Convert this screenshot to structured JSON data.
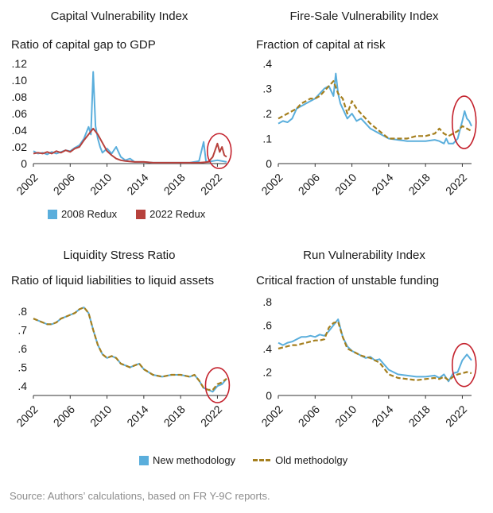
{
  "source": "Source: Authors’ calculations, based on FR Y-9C reports.",
  "colors": {
    "blue": "#5aaedc",
    "red": "#b7413c",
    "gold": "#a57f1e",
    "circle": "#c4222d"
  },
  "legend_top": {
    "a": "2008 Redux",
    "b": "2022 Redux"
  },
  "legend_bottom": {
    "a": "New methodology",
    "b": "Old methodolgy"
  },
  "chart_data": [
    {
      "type": "line",
      "title": "Capital Vulnerability Index",
      "ylabel": "Ratio of capital gap to GDP",
      "xlim": [
        2002,
        2023
      ],
      "ylim": [
        0,
        0.12
      ],
      "yticks": [
        0,
        0.02,
        0.04,
        0.06,
        0.08,
        0.1,
        0.12
      ],
      "yticklabels": [
        "0",
        ".02",
        ".04",
        ".06",
        ".08",
        ".10",
        ".12"
      ],
      "xticks": [
        2002,
        2006,
        2010,
        2014,
        2018,
        2022
      ],
      "xticklabels": [
        "2002",
        "2006",
        "2010",
        "2014",
        "2018",
        "2022"
      ],
      "series": [
        {
          "name": "2008 Redux",
          "color": "#5aaedc",
          "style": "solid",
          "x": [
            2002,
            2002.5,
            2003,
            2003.5,
            2004,
            2004.5,
            2005,
            2005.5,
            2006,
            2006.5,
            2007,
            2007.5,
            2008,
            2008.25,
            2008.5,
            2008.75,
            2009,
            2009.25,
            2009.5,
            2010,
            2010.5,
            2011,
            2011.5,
            2012,
            2012.5,
            2013,
            2014,
            2015,
            2016,
            2017,
            2018,
            2019,
            2020,
            2020.5,
            2020.75,
            2021,
            2021.5,
            2022,
            2022.5,
            2023
          ],
          "y": [
            0.015,
            0.012,
            0.013,
            0.011,
            0.014,
            0.012,
            0.014,
            0.016,
            0.015,
            0.019,
            0.022,
            0.03,
            0.044,
            0.035,
            0.11,
            0.045,
            0.03,
            0.02,
            0.013,
            0.018,
            0.012,
            0.02,
            0.008,
            0.004,
            0.006,
            0.002,
            0.002,
            0.001,
            0.001,
            0.001,
            0.001,
            0.001,
            0.003,
            0.026,
            0.003,
            0.002,
            0.003,
            0.004,
            0.003,
            0.002
          ]
        },
        {
          "name": "2022 Redux",
          "color": "#b7413c",
          "style": "solid",
          "x": [
            2002,
            2002.5,
            2003,
            2003.5,
            2004,
            2004.5,
            2005,
            2005.5,
            2006,
            2006.5,
            2007,
            2007.5,
            2008,
            2008.5,
            2009,
            2009.5,
            2010,
            2010.5,
            2011,
            2011.5,
            2012,
            2013,
            2014,
            2015,
            2016,
            2017,
            2018,
            2019,
            2020,
            2021,
            2021.5,
            2022,
            2022.25,
            2022.5,
            2022.75,
            2023
          ],
          "y": [
            0.012,
            0.013,
            0.012,
            0.014,
            0.012,
            0.015,
            0.013,
            0.016,
            0.014,
            0.018,
            0.02,
            0.028,
            0.035,
            0.042,
            0.035,
            0.025,
            0.015,
            0.01,
            0.006,
            0.004,
            0.003,
            0.002,
            0.002,
            0.001,
            0.001,
            0.001,
            0.001,
            0.001,
            0.001,
            0.002,
            0.008,
            0.024,
            0.014,
            0.02,
            0.01,
            0.008
          ]
        }
      ]
    },
    {
      "type": "line",
      "title": "Fire-Sale Vulnerability Index",
      "ylabel": "Fraction of capital at risk",
      "xlim": [
        2002,
        2023
      ],
      "ylim": [
        0,
        0.4
      ],
      "yticks": [
        0,
        0.1,
        0.2,
        0.3,
        0.4
      ],
      "yticklabels": [
        "0",
        ".1",
        ".2",
        ".3",
        ".4"
      ],
      "xticks": [
        2002,
        2006,
        2010,
        2014,
        2018,
        2022
      ],
      "xticklabels": [
        "2002",
        "2006",
        "2010",
        "2014",
        "2018",
        "2022"
      ],
      "series": [
        {
          "name": "New methodology",
          "color": "#5aaedc",
          "style": "solid",
          "x": [
            2002,
            2002.5,
            2003,
            2003.5,
            2004,
            2004.5,
            2005,
            2005.5,
            2006,
            2006.5,
            2007,
            2007.5,
            2008,
            2008.25,
            2008.5,
            2008.75,
            2009,
            2009.5,
            2010,
            2010.5,
            2011,
            2011.5,
            2012,
            2013,
            2014,
            2015,
            2016,
            2017,
            2018,
            2019,
            2019.5,
            2020,
            2020.25,
            2020.5,
            2021,
            2021.5,
            2022,
            2022.25,
            2022.5,
            2022.75,
            2023
          ],
          "y": [
            0.16,
            0.17,
            0.165,
            0.18,
            0.22,
            0.23,
            0.24,
            0.25,
            0.26,
            0.28,
            0.3,
            0.31,
            0.27,
            0.36,
            0.28,
            0.24,
            0.22,
            0.18,
            0.2,
            0.17,
            0.18,
            0.16,
            0.14,
            0.12,
            0.1,
            0.095,
            0.09,
            0.09,
            0.09,
            0.095,
            0.09,
            0.08,
            0.1,
            0.08,
            0.08,
            0.1,
            0.17,
            0.21,
            0.18,
            0.17,
            0.15
          ]
        },
        {
          "name": "Old methodolgy",
          "color": "#a57f1e",
          "style": "dashed",
          "x": [
            2002,
            2002.5,
            2003,
            2003.5,
            2004,
            2004.5,
            2005,
            2005.5,
            2006,
            2006.5,
            2007,
            2007.5,
            2008,
            2008.5,
            2009,
            2009.5,
            2010,
            2010.5,
            2011,
            2011.5,
            2012,
            2013,
            2014,
            2015,
            2016,
            2017,
            2018,
            2019,
            2019.5,
            2020,
            2020.5,
            2021,
            2021.5,
            2022,
            2022.5,
            2023
          ],
          "y": [
            0.18,
            0.19,
            0.2,
            0.21,
            0.22,
            0.24,
            0.25,
            0.26,
            0.26,
            0.27,
            0.29,
            0.31,
            0.33,
            0.28,
            0.26,
            0.2,
            0.25,
            0.22,
            0.2,
            0.18,
            0.16,
            0.13,
            0.1,
            0.1,
            0.1,
            0.11,
            0.11,
            0.12,
            0.14,
            0.12,
            0.11,
            0.12,
            0.13,
            0.15,
            0.14,
            0.13
          ]
        }
      ]
    },
    {
      "type": "line",
      "title": "Liquidity Stress Ratio",
      "ylabel": "Ratio of liquid liabilities to liquid assets",
      "xlim": [
        2002,
        2023
      ],
      "ylim": [
        0.35,
        0.85
      ],
      "yticks": [
        0.4,
        0.5,
        0.6,
        0.7,
        0.8
      ],
      "yticklabels": [
        ".4",
        ".5",
        ".6",
        ".7",
        ".8"
      ],
      "xticks": [
        2002,
        2006,
        2010,
        2014,
        2018,
        2022
      ],
      "xticklabels": [
        "2002",
        "2006",
        "2010",
        "2014",
        "2018",
        "2022"
      ],
      "series": [
        {
          "name": "New methodology",
          "color": "#5aaedc",
          "style": "solid",
          "x": [
            2002,
            2002.5,
            2003,
            2003.5,
            2004,
            2004.5,
            2005,
            2005.5,
            2006,
            2006.5,
            2007,
            2007.5,
            2008,
            2008.5,
            2009,
            2009.5,
            2010,
            2010.5,
            2011,
            2011.5,
            2012,
            2012.5,
            2013,
            2013.5,
            2014,
            2015,
            2016,
            2017,
            2018,
            2019,
            2019.5,
            2020,
            2020.5,
            2021,
            2021.5,
            2022,
            2022.5,
            2023
          ],
          "y": [
            0.76,
            0.75,
            0.74,
            0.73,
            0.73,
            0.74,
            0.76,
            0.77,
            0.78,
            0.79,
            0.81,
            0.82,
            0.79,
            0.7,
            0.62,
            0.57,
            0.55,
            0.56,
            0.55,
            0.52,
            0.51,
            0.5,
            0.51,
            0.52,
            0.49,
            0.46,
            0.45,
            0.46,
            0.46,
            0.45,
            0.46,
            0.43,
            0.39,
            0.38,
            0.37,
            0.4,
            0.41,
            0.44
          ]
        },
        {
          "name": "Old methodolgy",
          "color": "#a57f1e",
          "style": "dashed",
          "x": [
            2002,
            2002.5,
            2003,
            2003.5,
            2004,
            2004.5,
            2005,
            2005.5,
            2006,
            2006.5,
            2007,
            2007.5,
            2008,
            2008.5,
            2009,
            2009.5,
            2010,
            2010.5,
            2011,
            2011.5,
            2012,
            2012.5,
            2013,
            2013.5,
            2014,
            2015,
            2016,
            2017,
            2018,
            2019,
            2019.5,
            2020,
            2020.5,
            2021,
            2021.5,
            2022,
            2022.5,
            2023
          ],
          "y": [
            0.76,
            0.75,
            0.74,
            0.73,
            0.73,
            0.74,
            0.76,
            0.77,
            0.78,
            0.79,
            0.81,
            0.82,
            0.79,
            0.7,
            0.62,
            0.57,
            0.55,
            0.56,
            0.55,
            0.52,
            0.51,
            0.5,
            0.51,
            0.52,
            0.49,
            0.46,
            0.45,
            0.46,
            0.46,
            0.45,
            0.46,
            0.43,
            0.39,
            0.38,
            0.38,
            0.41,
            0.42,
            0.44
          ]
        }
      ]
    },
    {
      "type": "line",
      "title": "Run Vulnerability Index",
      "ylabel": "Critical fraction of unstable funding",
      "xlim": [
        2002,
        2023
      ],
      "ylim": [
        0,
        0.8
      ],
      "yticks": [
        0,
        0.2,
        0.4,
        0.6,
        0.8
      ],
      "yticklabels": [
        "0",
        ".2",
        ".4",
        ".6",
        ".8"
      ],
      "xticks": [
        2002,
        2006,
        2010,
        2014,
        2018,
        2022
      ],
      "xticklabels": [
        "2002",
        "2006",
        "2010",
        "2014",
        "2018",
        "2022"
      ],
      "series": [
        {
          "name": "New methodology",
          "color": "#5aaedc",
          "style": "solid",
          "x": [
            2002,
            2002.5,
            2003,
            2003.5,
            2004,
            2004.5,
            2005,
            2005.5,
            2006,
            2006.5,
            2007,
            2007.5,
            2008,
            2008.5,
            2009,
            2009.5,
            2010,
            2010.5,
            2011,
            2011.5,
            2012,
            2012.5,
            2013,
            2014,
            2015,
            2016,
            2017,
            2018,
            2019,
            2019.5,
            2020,
            2020.5,
            2021,
            2021.5,
            2022,
            2022.5,
            2023
          ],
          "y": [
            0.45,
            0.43,
            0.45,
            0.46,
            0.48,
            0.5,
            0.5,
            0.51,
            0.5,
            0.52,
            0.51,
            0.55,
            0.6,
            0.65,
            0.5,
            0.42,
            0.38,
            0.36,
            0.34,
            0.32,
            0.33,
            0.3,
            0.31,
            0.22,
            0.18,
            0.17,
            0.16,
            0.16,
            0.17,
            0.15,
            0.18,
            0.12,
            0.19,
            0.2,
            0.3,
            0.35,
            0.3
          ]
        },
        {
          "name": "Old methodolgy",
          "color": "#a57f1e",
          "style": "dashed",
          "x": [
            2002,
            2002.5,
            2003,
            2003.5,
            2004,
            2004.5,
            2005,
            2005.5,
            2006,
            2006.5,
            2007,
            2007.5,
            2008,
            2008.5,
            2009,
            2009.5,
            2010,
            2010.5,
            2011,
            2011.5,
            2012,
            2012.5,
            2013,
            2014,
            2015,
            2016,
            2017,
            2018,
            2019,
            2019.5,
            2020,
            2020.5,
            2021,
            2021.5,
            2022,
            2022.5,
            2023
          ],
          "y": [
            0.4,
            0.41,
            0.42,
            0.43,
            0.43,
            0.44,
            0.45,
            0.46,
            0.47,
            0.47,
            0.48,
            0.58,
            0.62,
            0.63,
            0.5,
            0.4,
            0.38,
            0.36,
            0.34,
            0.33,
            0.32,
            0.3,
            0.28,
            0.18,
            0.15,
            0.14,
            0.13,
            0.14,
            0.15,
            0.14,
            0.16,
            0.13,
            0.16,
            0.18,
            0.19,
            0.2,
            0.19
          ]
        }
      ]
    }
  ]
}
